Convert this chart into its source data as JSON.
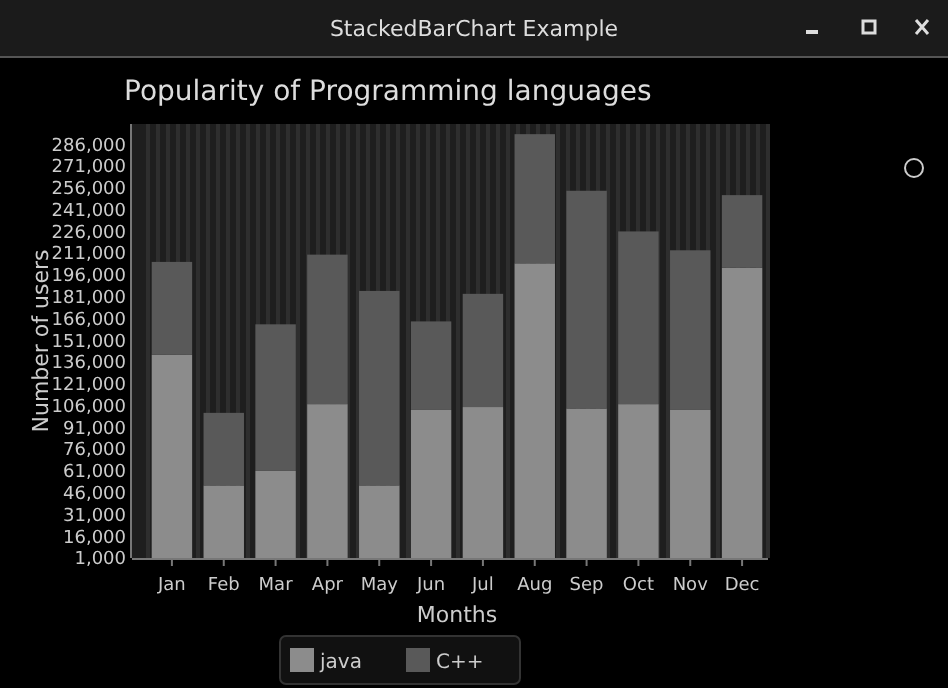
{
  "chart_data": {
    "type": "bar",
    "title": "Popularity of Programming languages",
    "xlabel": "Months",
    "ylabel": "Number of users",
    "annotations": [
      "StackedBarChart Example"
    ],
    "categories": [
      "Jan",
      "Feb",
      "Mar",
      "Apr",
      "May",
      "Jun",
      "Jul",
      "Aug",
      "Sep",
      "Oct",
      "Nov",
      "Dec"
    ],
    "stacked": true,
    "legend": "bottom",
    "grid": false,
    "ylim": [
      1000,
      300000
    ],
    "yticks": [
      {
        "value": 1000,
        "label": "1,000"
      },
      {
        "value": 16000,
        "label": "16,000"
      },
      {
        "value": 31000,
        "label": "31,000"
      },
      {
        "value": 46000,
        "label": "46,000"
      },
      {
        "value": 61000,
        "label": "61,000"
      },
      {
        "value": 76000,
        "label": "76,000"
      },
      {
        "value": 91000,
        "label": "91,000"
      },
      {
        "value": 106000,
        "label": "106,000"
      },
      {
        "value": 121000,
        "label": "121,000"
      },
      {
        "value": 136000,
        "label": "136,000"
      },
      {
        "value": 151000,
        "label": "151,000"
      },
      {
        "value": 166000,
        "label": "166,000"
      },
      {
        "value": 181000,
        "label": "181,000"
      },
      {
        "value": 196000,
        "label": "196,000"
      },
      {
        "value": 211000,
        "label": "211,000"
      },
      {
        "value": 226000,
        "label": "226,000"
      },
      {
        "value": 241000,
        "label": "241,000"
      },
      {
        "value": 256000,
        "label": "256,000"
      },
      {
        "value": 271000,
        "label": "271,000"
      },
      {
        "value": 286000,
        "label": "286,000"
      }
    ],
    "series": [
      {
        "name": "java",
        "color": "#8c8c8c",
        "values": [
          141000,
          51000,
          61000,
          107000,
          51000,
          103000,
          105000,
          204000,
          104000,
          107000,
          103000,
          201000
        ]
      },
      {
        "name": "C++",
        "color": "#595959",
        "values": [
          64000,
          50000,
          101000,
          103000,
          134000,
          61000,
          78000,
          89000,
          150000,
          119000,
          110000,
          50000
        ]
      }
    ]
  }
}
